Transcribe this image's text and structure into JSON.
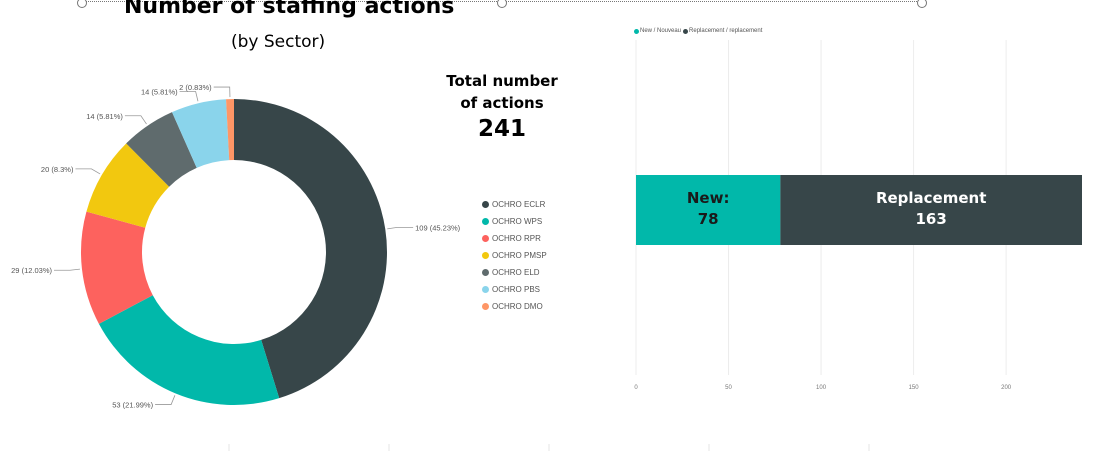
{
  "header": {
    "title": "Number of staffing actions",
    "subtitle": "(by Sector)"
  },
  "total": {
    "label_line1": "Total number",
    "label_line2": "of actions",
    "value": "241"
  },
  "chart_data": [
    {
      "type": "pie",
      "variant": "donut",
      "title": "Number of staffing actions",
      "subtitle": "(by Sector)",
      "legend_placement": "right",
      "slices": [
        {
          "label": "OCHRO ECLR",
          "value": 109,
          "data_label": "109 (45.23%)",
          "color": "#374649"
        },
        {
          "label": "OCHRO WPS",
          "value": 53,
          "data_label": "53 (21.99%)",
          "color": "#01B8AA"
        },
        {
          "label": "OCHRO RPR",
          "value": 29,
          "data_label": "29 (12.03%)",
          "color": "#FD625E"
        },
        {
          "label": "OCHRO PMSP",
          "value": 20,
          "data_label": "20 (8.3%)",
          "color": "#F2C80F"
        },
        {
          "label": "OCHRO ELD",
          "value": 14,
          "data_label": "14 (5.81%)",
          "color": "#5F6B6D"
        },
        {
          "label": "OCHRO PBS",
          "value": 14,
          "data_label": "14 (5.81%)",
          "color": "#8AD4EB"
        },
        {
          "label": "OCHRO DMO",
          "value": 2,
          "data_label": "2 (0.83%)",
          "color": "#FE9666"
        }
      ]
    },
    {
      "type": "bar",
      "orientation": "horizontal",
      "stacked": true,
      "legend_placement": "top-left",
      "series": [
        {
          "name": "New / Nouveau",
          "values": [
            78
          ],
          "label_prefix": "New:",
          "color": "#01B8AA"
        },
        {
          "name": "Replacement / replacement",
          "values": [
            163
          ],
          "label_prefix": "Replacement",
          "color": "#374649"
        }
      ],
      "x_ticks": [
        "0",
        "50",
        "100",
        "150",
        "200"
      ],
      "xlim": [
        0,
        241
      ],
      "grid": true
    }
  ]
}
